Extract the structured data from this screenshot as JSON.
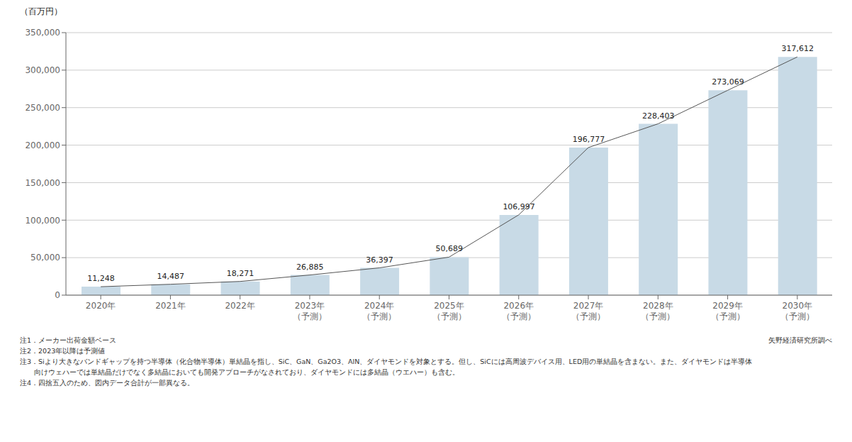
{
  "chart_data": {
    "type": "bar",
    "ylabel": "（百万円）",
    "categories": [
      "2020年",
      "2021年",
      "2022年",
      "2023年\n（予測）",
      "2024年\n（予測）",
      "2025年\n（予測）",
      "2026年\n（予測）",
      "2027年\n（予測）",
      "2028年\n（予測）",
      "2029年\n（予測）",
      "2030年\n（予測）"
    ],
    "series": [
      {
        "type": "bar",
        "color": "#c8dae6",
        "values": [
          11248,
          14487,
          18271,
          26885,
          36397,
          50689,
          106997,
          196777,
          228403,
          273069,
          317612
        ],
        "value_labels": [
          "11,248",
          "14,487",
          "18,271",
          "26,885",
          "36,397",
          "50,689",
          "106,997",
          "196,777",
          "228,403",
          "273,069",
          "317,612"
        ]
      },
      {
        "type": "line",
        "color": "#555555",
        "values": [
          11248,
          14487,
          18271,
          26885,
          36397,
          50689,
          106997,
          196777,
          228403,
          273069,
          317612
        ]
      }
    ],
    "data_labels": true,
    "ylim": [
      0,
      350000
    ],
    "yticks": [
      0,
      {
        "value": 50000,
        "label": "50,000"
      },
      {
        "value": 100000,
        "label": "100,000"
      },
      {
        "value": 150000,
        "label": "150,000"
      },
      {
        "value": 200000,
        "label": "200,000"
      },
      {
        "value": 250000,
        "label": "250,000"
      },
      {
        "value": 300000,
        "label": "300,000"
      },
      {
        "value": 350000,
        "label": "350,000"
      }
    ],
    "grid": true,
    "annotations": [
      "注1．メーカー出荷金額ベース",
      "注2．2023年以降は予測値",
      "注3．Siより大きなバンドギャップを持つ半導体（化合物半導体）単結晶を指し、SiC、GaN、Ga2O3、AlN、ダイヤモンドを対象とする。但し、SiCには高周波デバイス用、LED用の単結晶を含まない。また、ダイヤモンドは半導体",
      "　　向けウェハーでは単結晶だけでなく多結晶においても開発アプローチがなされており、ダイヤモンドには多結晶（ウエハー）も含む。",
      "注4．四捨五入のため、図内データ合計が一部異なる。",
      "矢野経済研究所調べ"
    ]
  }
}
